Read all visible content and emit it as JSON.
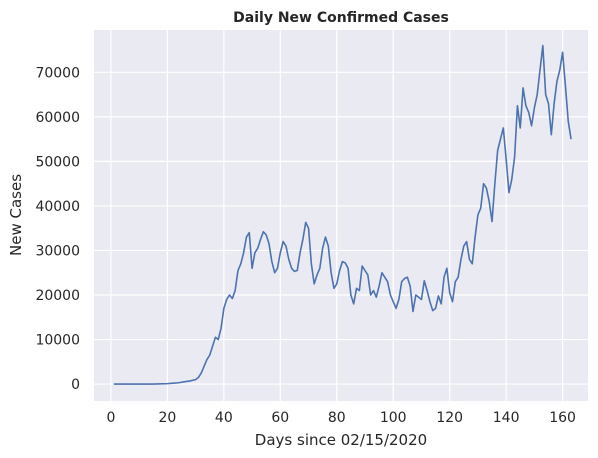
{
  "chart_data": {
    "type": "line",
    "title": "Daily New Confirmed Cases",
    "xlabel": "Days since 02/15/2020",
    "ylabel": "New Cases",
    "xlim": [
      -6,
      169
    ],
    "ylim": [
      -3800,
      79500
    ],
    "xticks": [
      0,
      20,
      40,
      60,
      80,
      100,
      120,
      140,
      160
    ],
    "yticks": [
      0,
      10000,
      20000,
      30000,
      40000,
      50000,
      60000,
      70000
    ],
    "grid": true,
    "series_color": "#4c72b0",
    "background": "#eaeaf2",
    "series": [
      {
        "x": [
          1,
          5,
          10,
          15,
          20,
          22,
          24,
          26,
          28,
          30,
          31,
          32,
          33,
          34,
          35,
          36,
          37,
          38,
          39,
          40,
          41,
          42,
          43,
          44,
          45,
          46,
          47,
          48,
          49,
          50,
          51,
          52,
          53,
          54,
          55,
          56,
          57,
          58,
          59,
          60,
          61,
          62,
          63,
          64,
          65,
          66,
          67,
          68,
          69,
          70,
          71,
          72,
          73,
          74,
          75,
          76,
          77,
          78,
          79,
          80,
          81,
          82,
          83,
          84,
          85,
          86,
          87,
          88,
          89,
          90,
          91,
          92,
          93,
          94,
          95,
          96,
          97,
          98,
          99,
          100,
          101,
          102,
          103,
          104,
          105,
          106,
          107,
          108,
          109,
          110,
          111,
          112,
          113,
          114,
          115,
          116,
          117,
          118,
          119,
          120,
          121,
          122,
          123,
          124,
          125,
          126,
          127,
          128,
          129,
          130,
          131,
          132,
          133,
          134,
          135,
          136,
          137,
          138,
          139,
          140,
          141,
          142,
          143,
          144,
          145,
          146,
          147,
          148,
          149,
          150,
          151,
          152,
          153,
          154,
          155,
          156,
          157,
          158,
          159,
          160,
          161,
          162,
          163
        ],
        "y": [
          0,
          0,
          0,
          0,
          100,
          200,
          300,
          500,
          700,
          1000,
          1500,
          2500,
          4000,
          5500,
          6500,
          8500,
          10500,
          10000,
          12500,
          17000,
          19000,
          20000,
          19200,
          21000,
          25500,
          27000,
          29500,
          33000,
          34000,
          26000,
          29500,
          30500,
          32500,
          34200,
          33500,
          31500,
          27500,
          25000,
          26000,
          29500,
          32000,
          31000,
          28000,
          26000,
          25300,
          25500,
          29500,
          32500,
          36300,
          35000,
          27000,
          22500,
          24500,
          26000,
          30500,
          33000,
          31000,
          25000,
          21500,
          22500,
          25500,
          27500,
          27200,
          26000,
          20000,
          18000,
          21500,
          21000,
          26500,
          25500,
          24500,
          20000,
          21000,
          19500,
          22000,
          25000,
          24000,
          23000,
          20000,
          18500,
          17000,
          19000,
          23000,
          23700,
          24000,
          22000,
          16300,
          20000,
          19500,
          19000,
          23200,
          21000,
          18500,
          16500,
          17000,
          19800,
          18000,
          24000,
          26000,
          20500,
          18500,
          23000,
          24000,
          28000,
          31000,
          32000,
          28000,
          27000,
          33000,
          38000,
          39500,
          45000,
          44000,
          41000,
          36500,
          45000,
          52500,
          55000,
          57500,
          50500,
          43000,
          46000,
          51000,
          62500,
          57500,
          66500,
          62500,
          61000,
          58000,
          62000,
          65000,
          70500,
          76000,
          65000,
          63000,
          56000,
          63000,
          68000,
          70500,
          74500,
          67000,
          59000,
          55000
        ]
      }
    ]
  }
}
